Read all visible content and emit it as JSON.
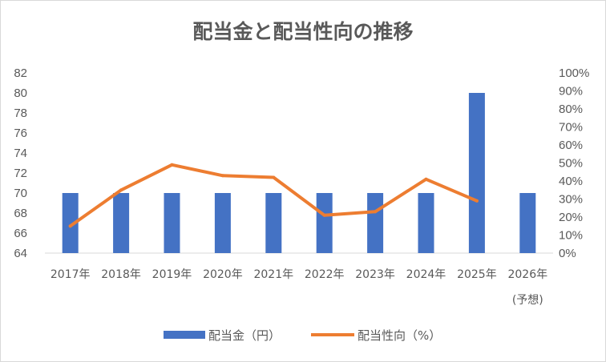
{
  "chart_data": {
    "type": "bar",
    "title": "配当金と配当性向の推移",
    "categories": [
      "2017年",
      "2018年",
      "2019年",
      "2020年",
      "2021年",
      "2022年",
      "2023年",
      "2024年",
      "2025年",
      "2026年"
    ],
    "category_sublabels": [
      "",
      "",
      "",
      "",
      "",
      "",
      "",
      "",
      "",
      "(予想)"
    ],
    "ylim_left": [
      64,
      82
    ],
    "yticks_left": [
      "64",
      "66",
      "68",
      "70",
      "72",
      "74",
      "76",
      "78",
      "80",
      "82"
    ],
    "ylim_right": [
      0,
      100
    ],
    "yticks_right": [
      "0%",
      "10%",
      "20%",
      "30%",
      "40%",
      "50%",
      "60%",
      "70%",
      "80%",
      "90%",
      "100%"
    ],
    "grid": false,
    "legend_position": "bottom",
    "series": [
      {
        "name": "配当金（円）",
        "type": "bar",
        "axis": "left",
        "color": "#4472c4",
        "values": [
          70,
          70,
          70,
          70,
          70,
          70,
          70,
          70,
          80,
          70
        ]
      },
      {
        "name": "配当性向（%）",
        "type": "line",
        "axis": "right",
        "color": "#ed7d31",
        "values": [
          15,
          35,
          49,
          43,
          42,
          21,
          23,
          41,
          29,
          null
        ]
      }
    ]
  }
}
